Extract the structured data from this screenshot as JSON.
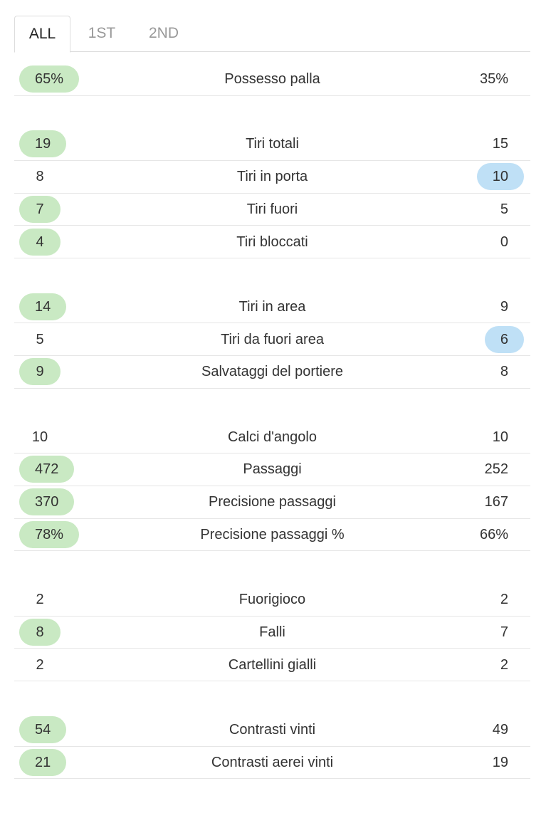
{
  "tabs": [
    "ALL",
    "1ST",
    "2ND"
  ],
  "groups": [
    [
      {
        "home": "65%",
        "label": "Possesso palla",
        "away": "35%",
        "highlight": "home"
      }
    ],
    [
      {
        "home": "19",
        "label": "Tiri totali",
        "away": "15",
        "highlight": "home"
      },
      {
        "home": "8",
        "label": "Tiri in porta",
        "away": "10",
        "highlight": "away"
      },
      {
        "home": "7",
        "label": "Tiri fuori",
        "away": "5",
        "highlight": "home"
      },
      {
        "home": "4",
        "label": "Tiri bloccati",
        "away": "0",
        "highlight": "home"
      }
    ],
    [
      {
        "home": "14",
        "label": "Tiri in area",
        "away": "9",
        "highlight": "home"
      },
      {
        "home": "5",
        "label": "Tiri da fuori area",
        "away": "6",
        "highlight": "away"
      },
      {
        "home": "9",
        "label": "Salvataggi del portiere",
        "away": "8",
        "highlight": "home"
      }
    ],
    [
      {
        "home": "10",
        "label": "Calci d'angolo",
        "away": "10"
      },
      {
        "home": "472",
        "label": "Passaggi",
        "away": "252",
        "highlight": "home"
      },
      {
        "home": "370",
        "label": "Precisione passaggi",
        "away": "167",
        "highlight": "home"
      },
      {
        "home": "78%",
        "label": "Precisione passaggi %",
        "away": "66%",
        "highlight": "home"
      }
    ],
    [
      {
        "home": "2",
        "label": "Fuorigioco",
        "away": "2"
      },
      {
        "home": "8",
        "label": "Falli",
        "away": "7",
        "highlight": "home"
      },
      {
        "home": "2",
        "label": "Cartellini gialli",
        "away": "2"
      }
    ],
    [
      {
        "home": "54",
        "label": "Contrasti vinti",
        "away": "49",
        "highlight": "home"
      },
      {
        "home": "21",
        "label": "Contrasti aerei vinti",
        "away": "19",
        "highlight": "home"
      }
    ]
  ]
}
